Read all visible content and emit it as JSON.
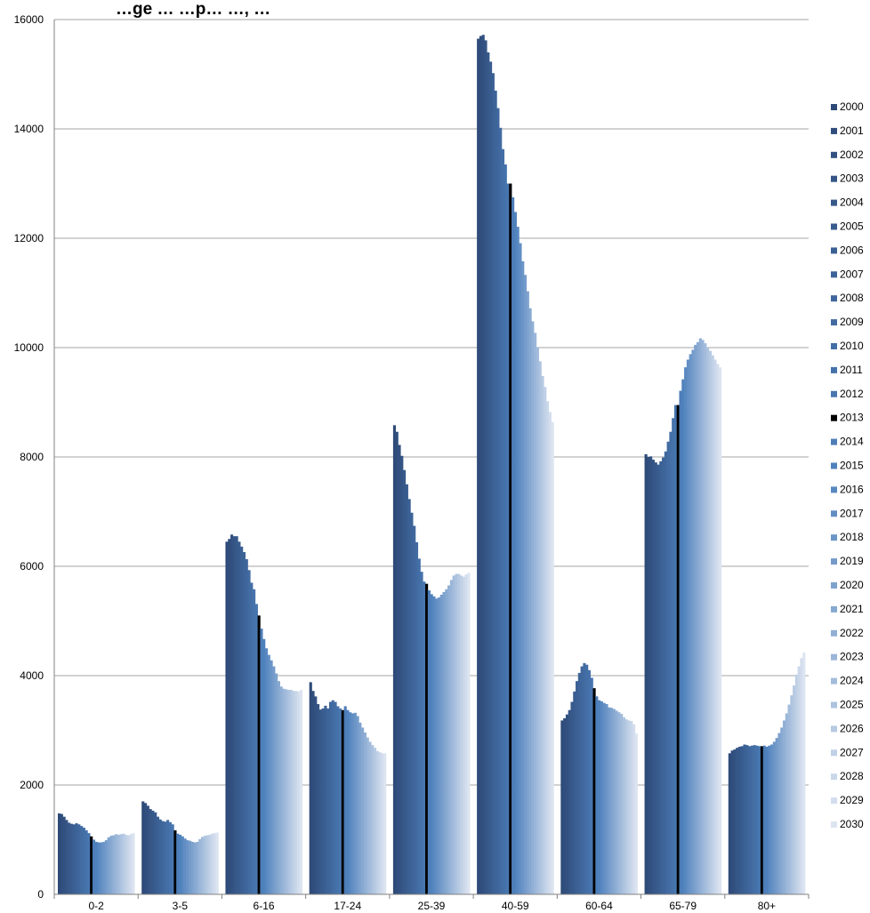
{
  "chart_data": {
    "type": "bar",
    "title": "…ge … …p… …, …",
    "xlabel": "",
    "ylabel": "",
    "ylim": [
      0,
      16000
    ],
    "yticks": [
      0,
      2000,
      4000,
      6000,
      8000,
      10000,
      12000,
      14000,
      16000
    ],
    "grid": true,
    "legend_position": "right",
    "highlight_series": "2013",
    "colors": {
      "dark": "#2e4a78",
      "mid": "#4f81bd",
      "light": "#dce4f0",
      "highlight": "#000000",
      "grid": "#a6a6a6"
    },
    "categories": [
      "0-2",
      "3-5",
      "6-16",
      "17-24",
      "25-39",
      "40-59",
      "60-64",
      "65-79",
      "80+"
    ],
    "series_names": [
      "2000",
      "2001",
      "2002",
      "2003",
      "2004",
      "2005",
      "2006",
      "2007",
      "2008",
      "2009",
      "2010",
      "2011",
      "2012",
      "2013",
      "2014",
      "2015",
      "2016",
      "2017",
      "2018",
      "2019",
      "2020",
      "2021",
      "2022",
      "2023",
      "2024",
      "2025",
      "2026",
      "2027",
      "2028",
      "2029",
      "2030"
    ],
    "values_by_category": {
      "0-2": [
        1480,
        1470,
        1420,
        1360,
        1310,
        1290,
        1280,
        1300,
        1280,
        1250,
        1220,
        1170,
        1120,
        1060,
        1000,
        960,
        950,
        950,
        960,
        990,
        1040,
        1070,
        1080,
        1100,
        1090,
        1100,
        1110,
        1090,
        1080,
        1100,
        1120
      ],
      "3-5": [
        1700,
        1670,
        1620,
        1560,
        1530,
        1500,
        1420,
        1370,
        1340,
        1330,
        1360,
        1320,
        1280,
        1170,
        1110,
        1090,
        1060,
        1020,
        990,
        980,
        960,
        950,
        960,
        1010,
        1050,
        1070,
        1080,
        1090,
        1110,
        1120,
        1130
      ],
      "6-16": [
        6450,
        6500,
        6580,
        6550,
        6550,
        6450,
        6360,
        6260,
        6130,
        5930,
        5700,
        5580,
        5310,
        5100,
        4860,
        4670,
        4500,
        4380,
        4280,
        4170,
        4040,
        3900,
        3800,
        3760,
        3750,
        3740,
        3740,
        3720,
        3720,
        3710,
        3740
      ],
      "17-24": [
        3880,
        3720,
        3620,
        3480,
        3380,
        3400,
        3450,
        3400,
        3520,
        3550,
        3520,
        3440,
        3400,
        3370,
        3440,
        3370,
        3330,
        3310,
        3320,
        3260,
        3140,
        3050,
        2960,
        2870,
        2790,
        2730,
        2680,
        2620,
        2600,
        2580,
        2580
      ],
      "25-39": [
        8580,
        8460,
        8220,
        8020,
        7760,
        7500,
        7230,
        6980,
        6740,
        6440,
        6140,
        5900,
        5720,
        5680,
        5560,
        5490,
        5450,
        5410,
        5430,
        5480,
        5530,
        5580,
        5650,
        5750,
        5830,
        5860,
        5860,
        5830,
        5810,
        5850,
        5880
      ],
      "40-59": [
        15650,
        15700,
        15720,
        15620,
        15400,
        15230,
        15020,
        14700,
        14380,
        14020,
        13630,
        13350,
        13000,
        13000,
        12750,
        12480,
        12210,
        11910,
        11580,
        11330,
        11030,
        10720,
        10480,
        10270,
        10010,
        9750,
        9480,
        9280,
        9020,
        8820,
        8640
      ],
      "60-64": [
        3180,
        3220,
        3290,
        3370,
        3520,
        3710,
        3900,
        4050,
        4170,
        4230,
        4200,
        4100,
        3960,
        3770,
        3620,
        3550,
        3530,
        3500,
        3480,
        3420,
        3410,
        3390,
        3360,
        3330,
        3300,
        3240,
        3200,
        3180,
        3170,
        3110,
        2940
      ],
      "65-79": [
        8050,
        8000,
        8010,
        7950,
        7900,
        7860,
        7920,
        7990,
        8100,
        8280,
        8460,
        8710,
        8950,
        8950,
        9210,
        9420,
        9640,
        9780,
        9880,
        9960,
        10050,
        10100,
        10170,
        10140,
        10080,
        10000,
        9940,
        9860,
        9780,
        9700,
        9640
      ],
      "80+": [
        2580,
        2630,
        2650,
        2680,
        2700,
        2710,
        2740,
        2730,
        2710,
        2720,
        2730,
        2720,
        2710,
        2710,
        2720,
        2700,
        2720,
        2740,
        2790,
        2860,
        2950,
        3050,
        3180,
        3310,
        3470,
        3640,
        3820,
        4020,
        4170,
        4320,
        4420
      ]
    }
  }
}
